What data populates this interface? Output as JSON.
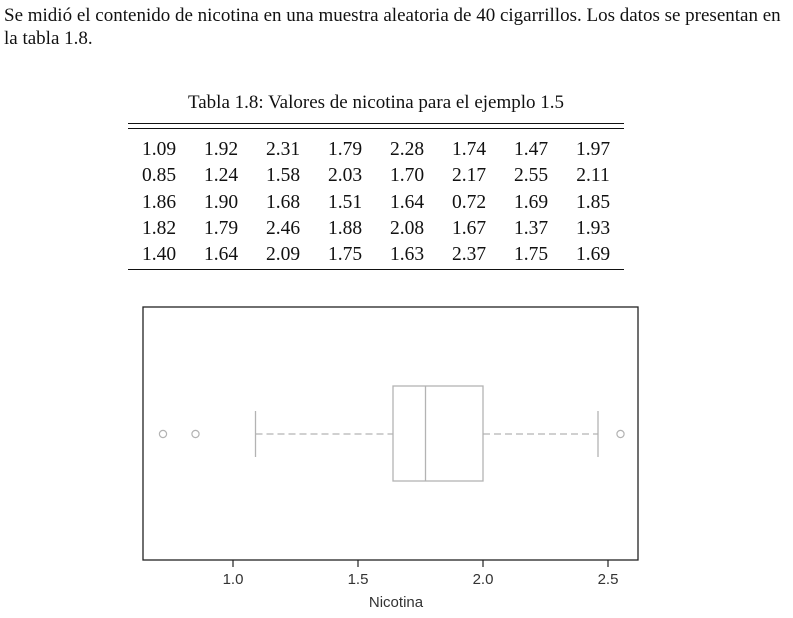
{
  "intro_text": "Se midió el contenido de nicotina en una muestra aleatoria de 40 cigarrillos. Los datos se presentan en la tabla 1.8.",
  "table": {
    "caption": "Tabla 1.8: Valores de nicotina para el ejemplo 1.5",
    "rows": [
      [
        "1.09",
        "1.92",
        "2.31",
        "1.79",
        "2.28",
        "1.74",
        "1.47",
        "1.97"
      ],
      [
        "0.85",
        "1.24",
        "1.58",
        "2.03",
        "1.70",
        "2.17",
        "2.55",
        "2.11"
      ],
      [
        "1.86",
        "1.90",
        "1.68",
        "1.51",
        "1.64",
        "0.72",
        "1.69",
        "1.85"
      ],
      [
        "1.82",
        "1.79",
        "2.46",
        "1.88",
        "2.08",
        "1.67",
        "1.37",
        "1.93"
      ],
      [
        "1.40",
        "1.64",
        "2.09",
        "1.75",
        "1.63",
        "2.37",
        "1.75",
        "1.69"
      ]
    ]
  },
  "chart_data": {
    "type": "boxplot",
    "orientation": "horizontal",
    "xlabel": "Nicotina",
    "ylabel": "",
    "title": "",
    "xticks": [
      "1.0",
      "1.5",
      "2.0",
      "2.5"
    ],
    "xlim": [
      0.7,
      2.57
    ],
    "whisker_low": 1.09,
    "q1": 1.64,
    "median": 1.77,
    "q3": 2.0,
    "whisker_high": 2.46,
    "outliers": [
      0.72,
      0.85,
      2.55
    ],
    "colors": {
      "box": "#b3b3b3",
      "frame": "#222222"
    }
  }
}
